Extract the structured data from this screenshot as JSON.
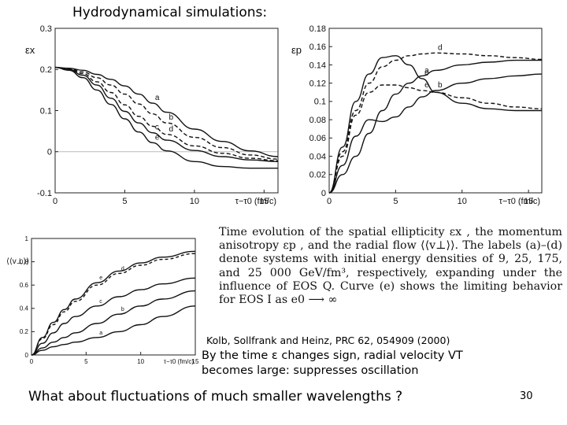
{
  "slide": {
    "title": "Hydrodynamical simulations:",
    "caption": "Time evolution of the spatial ellipticity εx , the momentum anisotropy εp , and the radial flow ⟨⟨v⊥⟩⟩. The labels (a)–(d) denote systems with initial energy densities of 9, 25, 175, and 25 000 GeV/fm³, respectively, expanding under the influence of EOS Q. Curve (e) shows the limiting behavior for EOS I as e0 ⟶ ∞",
    "citation": "Kolb, Sollfrank and Heinz, PRC 62, 054909 (2000)",
    "note_line1": "By the time ε changes sign, radial velocity VT",
    "note_line2": "becomes large: suppresses oscillation",
    "question": "What about fluctuations of much smaller wavelengths ?",
    "page_number": "30"
  },
  "chart_data": [
    {
      "type": "line",
      "ylabel": "εx",
      "xlabel": "τ−τ0 (fm/c)",
      "xlim": [
        0,
        16
      ],
      "ylim": [
        -0.1,
        0.3
      ],
      "xticks": [
        "0",
        "5",
        "10",
        "15"
      ],
      "yticks": [
        "-0.1",
        "0",
        "0.1",
        "0.2",
        "0.3"
      ],
      "curve_labels": [
        "a",
        "b",
        "c",
        "d",
        "e"
      ],
      "series": [
        {
          "name": "a",
          "x": [
            0,
            1,
            2,
            3,
            4,
            5,
            6,
            7,
            8,
            10,
            12,
            14,
            16
          ],
          "values": [
            0.205,
            0.203,
            0.198,
            0.188,
            0.176,
            0.16,
            0.14,
            0.118,
            0.096,
            0.055,
            0.025,
            0.002,
            -0.012
          ]
        },
        {
          "name": "b",
          "x": [
            0,
            1,
            2,
            3,
            4,
            5,
            6,
            7,
            8,
            10,
            12,
            14,
            16
          ],
          "values": [
            0.205,
            0.202,
            0.194,
            0.18,
            0.162,
            0.14,
            0.116,
            0.092,
            0.07,
            0.035,
            0.01,
            -0.008,
            -0.018
          ]
        },
        {
          "name": "c",
          "x": [
            0,
            1,
            2,
            3,
            4,
            5,
            6,
            7,
            8,
            10,
            12,
            14,
            16
          ],
          "values": [
            0.205,
            0.2,
            0.186,
            0.162,
            0.13,
            0.098,
            0.07,
            0.046,
            0.028,
            0.003,
            -0.012,
            -0.02,
            -0.024
          ]
        },
        {
          "name": "d",
          "x": [
            0,
            1,
            2,
            3,
            4,
            5,
            6,
            7,
            8,
            10,
            12,
            14,
            16
          ],
          "values": [
            0.205,
            0.201,
            0.19,
            0.17,
            0.144,
            0.114,
            0.086,
            0.062,
            0.042,
            0.014,
            -0.004,
            -0.016,
            -0.022
          ]
        },
        {
          "name": "e",
          "x": [
            0,
            1,
            2,
            3,
            4,
            5,
            6,
            7,
            8,
            10,
            12,
            14,
            16
          ],
          "values": [
            0.205,
            0.198,
            0.18,
            0.15,
            0.115,
            0.08,
            0.048,
            0.022,
            0.002,
            -0.024,
            -0.036,
            -0.04,
            -0.04
          ]
        }
      ]
    },
    {
      "type": "line",
      "ylabel": "εp",
      "xlabel": "τ−τ0 (fm/c)",
      "xlim": [
        0,
        16
      ],
      "ylim": [
        0,
        0.18
      ],
      "xticks": [
        "0",
        "5",
        "10",
        "15"
      ],
      "yticks": [
        "0",
        "0.02",
        "0.04",
        "0.06",
        "0.08",
        "0.1",
        "0.12",
        "0.14",
        "0.16",
        "0.18"
      ],
      "curve_labels": [
        "a",
        "b",
        "c",
        "d",
        "e"
      ],
      "series": [
        {
          "name": "a",
          "x": [
            0,
            1,
            2,
            3,
            4,
            5,
            6,
            7,
            8,
            10,
            12,
            14,
            16
          ],
          "values": [
            0,
            0.02,
            0.04,
            0.065,
            0.09,
            0.108,
            0.12,
            0.128,
            0.134,
            0.14,
            0.143,
            0.145,
            0.145
          ]
        },
        {
          "name": "b",
          "x": [
            0,
            1,
            2,
            3,
            4,
            5,
            6,
            7,
            8,
            10,
            12,
            14,
            16
          ],
          "values": [
            0,
            0.03,
            0.062,
            0.08,
            0.078,
            0.083,
            0.094,
            0.105,
            0.112,
            0.12,
            0.125,
            0.128,
            0.13
          ]
        },
        {
          "name": "c",
          "x": [
            0,
            1,
            2,
            3,
            4,
            5,
            6,
            7,
            8,
            10,
            12,
            14,
            16
          ],
          "values": [
            0,
            0.05,
            0.1,
            0.13,
            0.148,
            0.15,
            0.14,
            0.125,
            0.11,
            0.098,
            0.092,
            0.09,
            0.09
          ]
        },
        {
          "name": "d",
          "x": [
            0,
            1,
            2,
            3,
            4,
            5,
            6,
            7,
            8,
            10,
            12,
            14,
            16
          ],
          "values": [
            0,
            0.045,
            0.09,
            0.12,
            0.138,
            0.145,
            0.15,
            0.152,
            0.153,
            0.152,
            0.15,
            0.148,
            0.146
          ]
        },
        {
          "name": "e",
          "x": [
            0,
            1,
            2,
            3,
            4,
            5,
            6,
            7,
            8,
            10,
            12,
            14,
            16
          ],
          "values": [
            0,
            0.04,
            0.085,
            0.11,
            0.118,
            0.118,
            0.115,
            0.112,
            0.11,
            0.104,
            0.098,
            0.094,
            0.092
          ]
        }
      ]
    },
    {
      "type": "line",
      "ylabel": "⟨⟨v⊥⟩⟩",
      "xlabel": "τ−τ0 (fm/c)",
      "xlim": [
        0,
        15
      ],
      "ylim": [
        0,
        1
      ],
      "xticks": [
        "0",
        "5",
        "10",
        "15"
      ],
      "yticks": [
        "0",
        "0.2",
        "0.4",
        "0.6",
        "0.8",
        "1"
      ],
      "curve_labels": [
        "a",
        "b",
        "c",
        "d",
        "e"
      ],
      "series": [
        {
          "name": "a",
          "x": [
            0,
            1,
            2,
            3,
            4,
            6,
            8,
            10,
            12,
            15
          ],
          "values": [
            0,
            0.04,
            0.07,
            0.09,
            0.11,
            0.15,
            0.2,
            0.26,
            0.33,
            0.42
          ]
        },
        {
          "name": "b",
          "x": [
            0,
            1,
            2,
            3,
            4,
            6,
            8,
            10,
            12,
            15
          ],
          "values": [
            0,
            0.06,
            0.11,
            0.15,
            0.19,
            0.27,
            0.35,
            0.42,
            0.48,
            0.55
          ]
        },
        {
          "name": "c",
          "x": [
            0,
            1,
            2,
            3,
            4,
            6,
            8,
            10,
            12,
            15
          ],
          "values": [
            0,
            0.1,
            0.19,
            0.27,
            0.33,
            0.42,
            0.5,
            0.56,
            0.61,
            0.66
          ]
        },
        {
          "name": "d",
          "x": [
            0,
            1,
            2,
            3,
            4,
            6,
            8,
            10,
            12,
            15
          ],
          "values": [
            0,
            0.14,
            0.26,
            0.37,
            0.46,
            0.6,
            0.7,
            0.77,
            0.82,
            0.87
          ]
        },
        {
          "name": "e",
          "x": [
            0,
            1,
            2,
            3,
            4,
            6,
            8,
            10,
            12,
            15
          ],
          "values": [
            0,
            0.15,
            0.28,
            0.39,
            0.48,
            0.62,
            0.72,
            0.79,
            0.84,
            0.89
          ]
        }
      ]
    }
  ],
  "colors": {
    "ink": "#111111",
    "grid": "#bbbbbb",
    "frame": "#222222"
  }
}
